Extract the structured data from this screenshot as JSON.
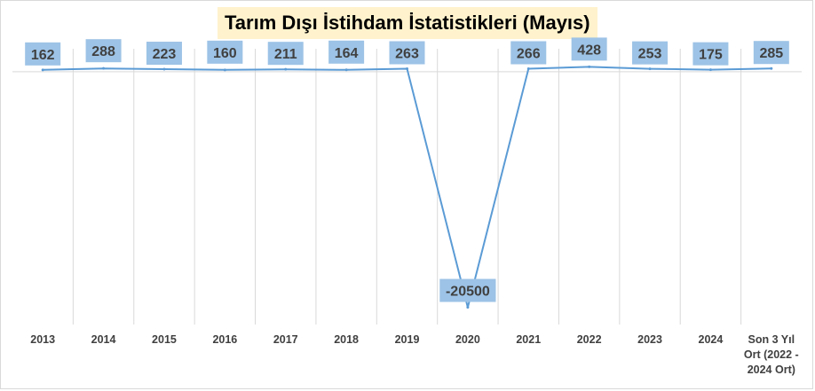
{
  "chart_data": {
    "type": "line",
    "title": "Tarım Dışı İstihdam İstatistikleri (Mayıs)",
    "xlabel": "",
    "ylabel": "",
    "categories": [
      "2013",
      "2014",
      "2015",
      "2016",
      "2017",
      "2018",
      "2019",
      "2020",
      "2021",
      "2022",
      "2023",
      "2024",
      "Son 3 Yıl Ort (2022 - 2024 Ort)"
    ],
    "category_lines": [
      [
        "2013"
      ],
      [
        "2014"
      ],
      [
        "2015"
      ],
      [
        "2016"
      ],
      [
        "2017"
      ],
      [
        "2018"
      ],
      [
        "2019"
      ],
      [
        "2020"
      ],
      [
        "2021"
      ],
      [
        "2022"
      ],
      [
        "2023"
      ],
      [
        "2024"
      ],
      [
        "Son 3 Yıl",
        "Ort (2022 -",
        "2024 Ort)"
      ]
    ],
    "series": [
      {
        "values": [
          162,
          288,
          223,
          160,
          211,
          164,
          263,
          -20500,
          266,
          428,
          253,
          175,
          285
        ]
      }
    ],
    "data_labels": [
      "162",
      "288",
      "223",
      "160",
      "211",
      "164",
      "263",
      "-20500",
      "266",
      "428",
      "253",
      "175",
      "285"
    ],
    "grid": "vertical",
    "legend": "none",
    "colors": {
      "line": "#5b9bd5",
      "label_box": "#9dc3e6",
      "title_box": "#fff2cc",
      "grid": "#d9d9d9",
      "text": "#404040"
    }
  }
}
